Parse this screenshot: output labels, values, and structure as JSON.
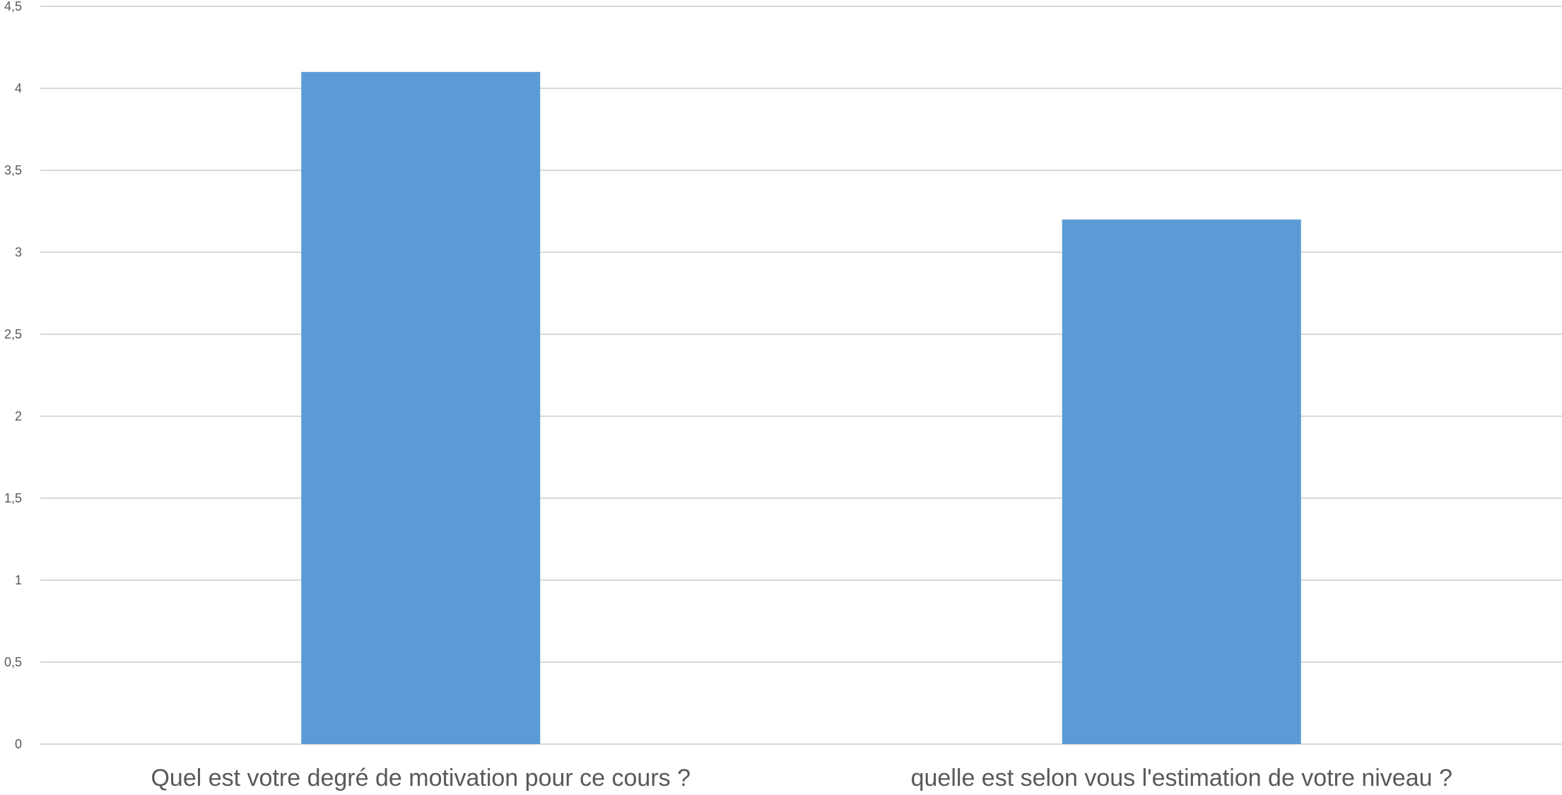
{
  "chart_data": {
    "type": "bar",
    "categories": [
      "Quel est votre degré de motivation pour ce cours ?",
      "quelle est selon vous l'estimation de votre niveau ?"
    ],
    "values": [
      4.1,
      3.2
    ],
    "ylim": [
      0,
      4.5
    ],
    "yticks": [
      0,
      0.5,
      1,
      1.5,
      2,
      2.5,
      3,
      3.5,
      4,
      4.5
    ],
    "ytick_labels": [
      "0",
      "0,5",
      "1",
      "1,5",
      "2",
      "2,5",
      "3",
      "3,5",
      "4",
      "4,5"
    ],
    "grid": true,
    "legend": "none",
    "title": "",
    "xlabel": "",
    "ylabel": "",
    "colors": {
      "bar": "#5b9bd5",
      "grid": "#d9d9d9",
      "text": "#595959"
    }
  }
}
